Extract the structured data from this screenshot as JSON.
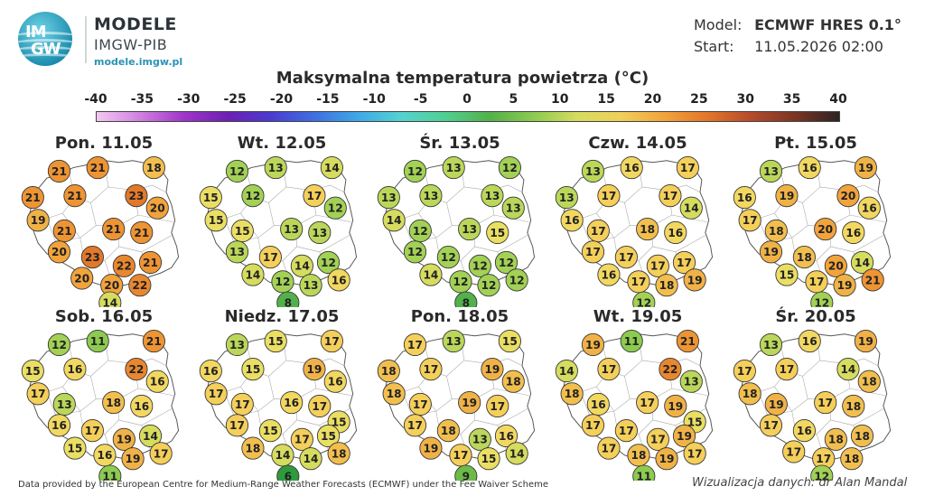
{
  "header": {
    "logo_top": "IM",
    "logo_bottom": "GW",
    "org_title": "MODELE",
    "org_subtitle": "IMGW-PIB",
    "url": "modele.imgw.pl"
  },
  "meta": {
    "model_label": "Model:",
    "model_value": "ECMWF HRES 0.1°",
    "start_label": "Start:",
    "start_value": "11.05.2026 02:00"
  },
  "title": "Maksymalna temperatura powietrza (°C)",
  "scale": {
    "ticks": [
      "-40",
      "-35",
      "-30",
      "-25",
      "-20",
      "-15",
      "-10",
      "-5",
      "0",
      "5",
      "10",
      "15",
      "20",
      "25",
      "30",
      "35",
      "40"
    ],
    "colors": [
      "#f3c9f1",
      "#d07fe0",
      "#a035c9",
      "#6d1fb3",
      "#4b3cd1",
      "#3f70e0",
      "#3ea9e8",
      "#54d3d0",
      "#4fcf90",
      "#52b14a",
      "#8ccb4f",
      "#d6dc5e",
      "#f0cf5a",
      "#f2a33c",
      "#e2742a",
      "#b44a2a",
      "#7a3524",
      "#2c2424"
    ]
  },
  "days": [
    {
      "label": "Pon. 11.05",
      "values": [
        21,
        21,
        18,
        21,
        21,
        23,
        20,
        19,
        21,
        21,
        21,
        20,
        23,
        22,
        21,
        20,
        20,
        22,
        14
      ]
    },
    {
      "label": "Wt. 12.05",
      "values": [
        12,
        13,
        14,
        15,
        12,
        17,
        12,
        15,
        15,
        13,
        13,
        13,
        17,
        14,
        12,
        14,
        12,
        13,
        16,
        8
      ]
    },
    {
      "label": "Śr. 13.05",
      "values": [
        12,
        13,
        12,
        13,
        13,
        13,
        13,
        14,
        12,
        13,
        15,
        12,
        12,
        12,
        12,
        14,
        12,
        12,
        12,
        8
      ]
    },
    {
      "label": "Czw. 14.05",
      "values": [
        13,
        16,
        17,
        13,
        17,
        17,
        14,
        16,
        17,
        18,
        16,
        17,
        17,
        17,
        17,
        16,
        17,
        18,
        19,
        12
      ]
    },
    {
      "label": "Pt. 15.05",
      "values": [
        13,
        16,
        19,
        16,
        19,
        20,
        16,
        17,
        18,
        20,
        16,
        19,
        18,
        20,
        14,
        15,
        17,
        19,
        21,
        12
      ]
    },
    {
      "label": "Sob. 16.05",
      "values": [
        12,
        11,
        21,
        15,
        16,
        22,
        16,
        17,
        13,
        18,
        16,
        16,
        17,
        19,
        14,
        15,
        16,
        19,
        17,
        11
      ]
    },
    {
      "label": "Niedz. 17.05",
      "values": [
        13,
        15,
        17,
        16,
        15,
        19,
        16,
        17,
        17,
        16,
        17,
        15,
        17,
        15,
        17,
        15,
        18,
        14,
        14,
        18,
        6
      ]
    },
    {
      "label": "Pon. 18.05",
      "values": [
        17,
        13,
        15,
        18,
        17,
        19,
        18,
        18,
        17,
        19,
        17,
        17,
        18,
        13,
        16,
        19,
        17,
        15,
        14,
        9
      ]
    },
    {
      "label": "Wt. 19.05",
      "values": [
        19,
        11,
        21,
        14,
        17,
        22,
        13,
        18,
        16,
        17,
        19,
        15,
        17,
        17,
        17,
        19,
        17,
        18,
        19,
        17,
        11
      ]
    },
    {
      "label": "Śr. 20.05",
      "values": [
        13,
        16,
        19,
        17,
        17,
        14,
        18,
        18,
        19,
        17,
        18,
        17,
        16,
        18,
        18,
        17,
        17,
        18,
        12
      ]
    }
  ],
  "footer": {
    "source": "Data provided by the European Centre for Medium-Range Weather Forecasts (ECMWF) under the Fee Waiver Scheme",
    "credit": "Wizualizacja danych: dr Alan Mandal"
  }
}
